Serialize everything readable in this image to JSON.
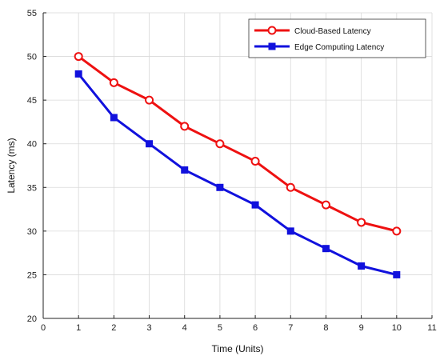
{
  "chart_data": {
    "type": "line",
    "xlabel": "Time (Units)",
    "ylabel": "Latency (ms)",
    "xlim": [
      0,
      11
    ],
    "ylim": [
      20,
      55
    ],
    "xticks": [
      0,
      1,
      2,
      3,
      4,
      5,
      6,
      7,
      8,
      9,
      10,
      11
    ],
    "yticks": [
      20,
      25,
      30,
      35,
      40,
      45,
      50,
      55
    ],
    "grid": true,
    "legend_position": "top-right",
    "x": [
      1,
      2,
      3,
      4,
      5,
      6,
      7,
      8,
      9,
      10
    ],
    "series": [
      {
        "name": "Cloud-Based Latency",
        "values": [
          50,
          47,
          45,
          42,
          40,
          38,
          35,
          33,
          31,
          30
        ],
        "color": "#ee1111",
        "marker": "circle-open"
      },
      {
        "name": "Edge Computing Latency",
        "values": [
          48,
          43,
          40,
          37,
          35,
          33,
          30,
          28,
          26,
          25
        ],
        "color": "#1111dd",
        "marker": "square"
      }
    ]
  }
}
